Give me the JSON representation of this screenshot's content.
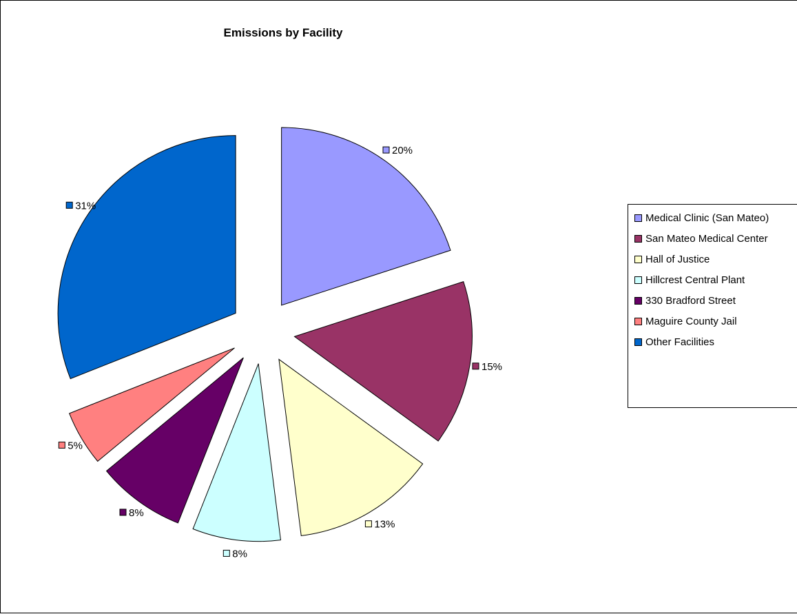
{
  "chart_data": {
    "type": "pie",
    "title": "Emissions by Facility",
    "categories": [
      "Medical Clinic (San Mateo)",
      "San Mateo Medical Center",
      "Hall of Justice",
      "Hillcrest Central Plant",
      "330 Bradford Street",
      "Maguire County Jail",
      "Other Facilities"
    ],
    "values": [
      20,
      15,
      13,
      8,
      8,
      5,
      31
    ],
    "data_labels": [
      "20%",
      "15%",
      "13%",
      "8%",
      "8%",
      "5%",
      "31%"
    ],
    "colors": [
      "#9999FF",
      "#993366",
      "#FFFFCC",
      "#CCFFFF",
      "#660066",
      "#FF8080",
      "#0066CC"
    ],
    "exploded": true,
    "legend_position": "right",
    "start_angle": "12 o'clock",
    "direction": "clockwise"
  }
}
